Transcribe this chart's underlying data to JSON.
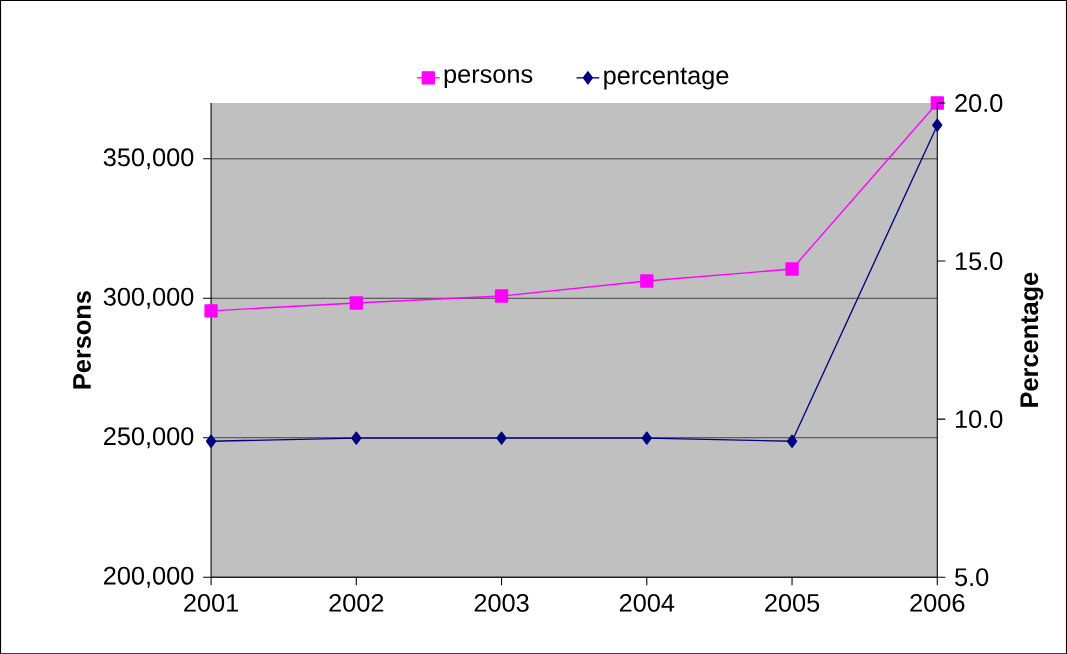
{
  "chart_data": {
    "type": "line",
    "categories": [
      "2001",
      "2002",
      "2003",
      "2004",
      "2005",
      "2006"
    ],
    "series": [
      {
        "name": "persons",
        "color": "#ff00ff",
        "marker": "square",
        "values": [
          295500,
          298300,
          300800,
          306200,
          310500,
          370000
        ]
      },
      {
        "name": "percentage",
        "color": "#000080",
        "marker": "diamond",
        "axis": "y2",
        "values": [
          9.3,
          9.4,
          9.4,
          9.4,
          9.3,
          19.3
        ]
      }
    ],
    "ylabel": "Persons",
    "y2label": "Percentage",
    "ylim": [
      200000,
      370000
    ],
    "yticks": [
      {
        "value": 200000,
        "label": "200,000"
      },
      {
        "value": 250000,
        "label": "250,000"
      },
      {
        "value": 300000,
        "label": "300,000"
      },
      {
        "value": 350000,
        "label": "350,000"
      }
    ],
    "y2lim": [
      5,
      20
    ],
    "y2ticks": [
      {
        "value": 5,
        "label": "5.0"
      },
      {
        "value": 10,
        "label": "10.0"
      },
      {
        "value": 15,
        "label": "15.0"
      },
      {
        "value": 20,
        "label": "20.0"
      }
    ],
    "grid": "y",
    "legend": "top"
  }
}
